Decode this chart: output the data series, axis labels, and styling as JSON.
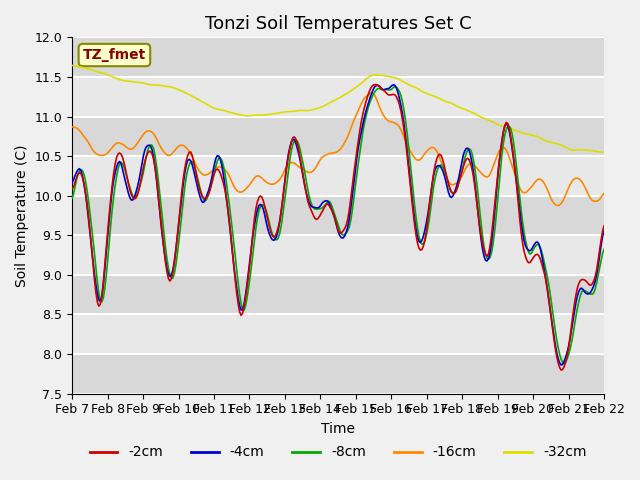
{
  "title": "Tonzi Soil Temperatures Set C",
  "xlabel": "Time",
  "ylabel": "Soil Temperature (C)",
  "ylim": [
    7.5,
    12.0
  ],
  "yticks": [
    7.5,
    8.0,
    8.5,
    9.0,
    9.5,
    10.0,
    10.5,
    11.0,
    11.5,
    12.0
  ],
  "date_labels": [
    "Feb 7",
    "Feb 8",
    "Feb 9",
    "Feb 10",
    "Feb 11",
    "Feb 12",
    "Feb 13",
    "Feb 14",
    "Feb 15",
    "Feb 16",
    "Feb 17",
    "Feb 18",
    "Feb 19",
    "Feb 20",
    "Feb 21",
    "Feb 22"
  ],
  "legend_labels": [
    "-2cm",
    "-4cm",
    "-8cm",
    "-16cm",
    "-32cm"
  ],
  "line_colors": [
    "#cc0000",
    "#0000cc",
    "#00aa00",
    "#ff8800",
    "#dddd00"
  ],
  "annotation_text": "TZ_fmet",
  "annotation_color": "#880000",
  "annotation_bg": "#ffffcc",
  "annotation_edge": "#888800",
  "fig_bg": "#f0f0f0",
  "plot_bg": "#e8e8e8",
  "band_color": "#d8d8d8",
  "grid_color": "#ffffff",
  "title_fontsize": 13,
  "label_fontsize": 10,
  "tick_fontsize": 9,
  "legend_fontsize": 10,
  "line_width": 1.2
}
